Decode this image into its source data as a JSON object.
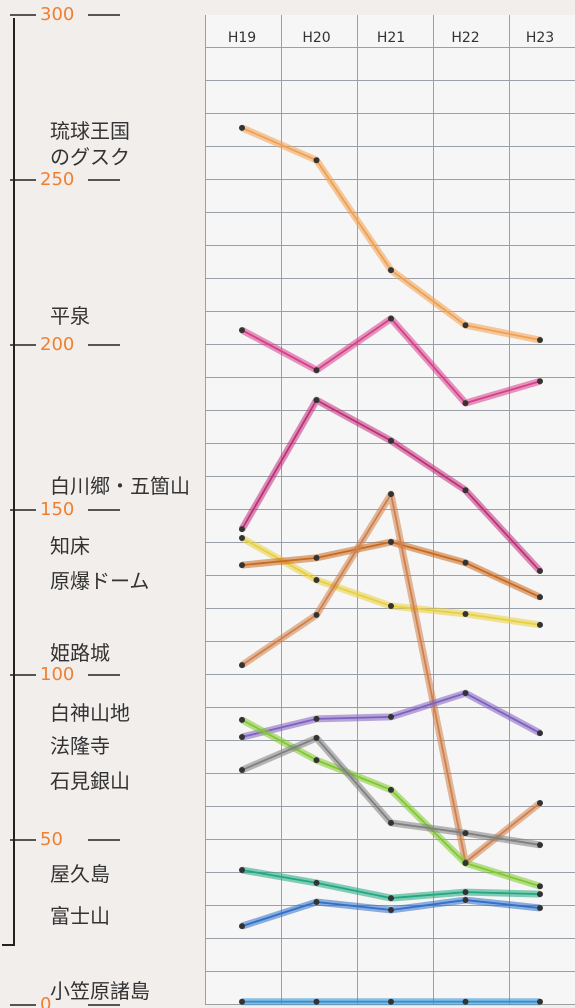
{
  "chart_data": {
    "type": "line",
    "categories": [
      "H19",
      "H20",
      "H21",
      "H22",
      "H23"
    ],
    "ylim": [
      0,
      300
    ],
    "yticks": [
      0,
      50,
      100,
      150,
      200,
      250,
      300
    ],
    "series": [
      {
        "name": "琉球王国のグスク",
        "color": "#f0a050",
        "values": [
          265.8,
          256,
          222.7,
          206,
          201.5
        ]
      },
      {
        "name": "平泉",
        "color": "#d6408a",
        "values": [
          204.5,
          192.4,
          208,
          182.4,
          189
        ]
      },
      {
        "name": "白川郷・五箇山",
        "color": "#c0307a",
        "values": [
          144.2,
          183.3,
          171,
          156,
          131.5
        ]
      },
      {
        "name": "知床",
        "color": "#e8d040",
        "values": [
          141.5,
          128.8,
          120.9,
          118.5,
          115.2
        ]
      },
      {
        "name": "原爆ドーム",
        "color": "#c86a20",
        "values": [
          133.3,
          135.5,
          140.3,
          134,
          123.6
        ]
      },
      {
        "name": "姫路城",
        "color": "#d0804a",
        "values": [
          103,
          118.2,
          154.8,
          43.3,
          61.2
        ]
      },
      {
        "name": "白神山地",
        "color": "#8060c0",
        "values": [
          81.2,
          86.7,
          87.3,
          94.5,
          82.4
        ]
      },
      {
        "name": "法隆寺",
        "color": "#80c830",
        "values": [
          86.4,
          74.2,
          65.2,
          43,
          36
        ]
      },
      {
        "name": "石見銀山",
        "color": "#808080",
        "values": [
          71.2,
          80.9,
          55.2,
          52.1,
          48.5
        ]
      },
      {
        "name": "屋久島",
        "color": "#20a880",
        "values": [
          40.9,
          37,
          32.4,
          34.2,
          33.6
        ]
      },
      {
        "name": "富士山",
        "color": "#3070c8",
        "values": [
          23.9,
          31.2,
          28.8,
          31.8,
          29.4
        ]
      },
      {
        "name": "小笠原諸島",
        "color": "#3090d0",
        "values": [
          1,
          1,
          1,
          1,
          1
        ]
      }
    ]
  }
}
